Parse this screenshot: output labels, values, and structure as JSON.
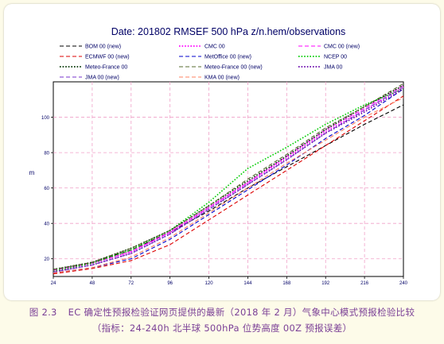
{
  "caption": {
    "figure_label": "图 2.3",
    "line1": "EC 确定性预报检验证网页提供的最新（2018 年 2 月）气象中心模式预报检验比较",
    "line2": "（指标：24-240h 北半球 500hPa 位势高度 00Z 预报误差）"
  },
  "chart_data": {
    "type": "line",
    "title": "Date: 201802 RMSEF 500 hPa z/n.hem/observations",
    "xlabel": "",
    "ylabel": "m",
    "x": [
      24,
      48,
      72,
      96,
      120,
      144,
      168,
      192,
      216,
      240
    ],
    "xlim": [
      24,
      240
    ],
    "ylim": [
      10,
      120
    ],
    "yticks": [
      20,
      40,
      60,
      80,
      100
    ],
    "grid": true,
    "legend_position": "top",
    "series": [
      {
        "name": "BOM 00 (new)",
        "color": "#000000",
        "dash": "dashed",
        "values": [
          13.5,
          18,
          25,
          35,
          47,
          60,
          72,
          84,
          96,
          107
        ]
      },
      {
        "name": "CMC 00",
        "color": "#ff00ff",
        "dash": "dotted",
        "values": [
          13,
          17.5,
          24,
          35,
          49,
          63,
          77,
          92,
          104,
          117
        ]
      },
      {
        "name": "CMC 00 (new)",
        "color": "#ff00ff",
        "dash": "dashed",
        "values": [
          13.5,
          17.5,
          24,
          35,
          49,
          63,
          78,
          93,
          105,
          118
        ]
      },
      {
        "name": "ECMWF 00 (new)",
        "color": "#dd0000",
        "dash": "dashed",
        "values": [
          11.5,
          14.5,
          19,
          28,
          42,
          56,
          70,
          84,
          98,
          112
        ]
      },
      {
        "name": "MetOffice 00 (new)",
        "color": "#0000cc",
        "dash": "dashed",
        "values": [
          12,
          15,
          20,
          31,
          45,
          59,
          73,
          88,
          101,
          116
        ]
      },
      {
        "name": "NCEP 00",
        "color": "#00cc00",
        "dash": "dotted",
        "values": [
          13,
          17.5,
          25,
          36,
          52,
          71,
          83,
          96,
          107,
          116
        ]
      },
      {
        "name": "Meteo-France 00",
        "color": "#003300",
        "dash": "dotted",
        "values": [
          14,
          18,
          26,
          36,
          50,
          64,
          78,
          93,
          106,
          118
        ]
      },
      {
        "name": "Meteo-France 00 (new)",
        "color": "#556b2f",
        "dash": "dashed",
        "values": [
          14,
          18,
          26,
          36,
          50,
          65,
          79,
          94,
          106,
          119
        ]
      },
      {
        "name": "JMA 00",
        "color": "#6600aa",
        "dash": "dotted",
        "values": [
          12.5,
          16.5,
          23,
          34,
          48,
          62,
          76,
          91,
          103,
          116
        ]
      },
      {
        "name": "JMA 00 (new)",
        "color": "#7733cc",
        "dash": "dashed",
        "values": [
          12.5,
          16.5,
          23,
          34,
          48,
          62,
          76,
          91,
          104,
          117
        ]
      },
      {
        "name": "KMA 00 (new)",
        "color": "#ff8060",
        "dash": "dashed",
        "values": [
          12,
          15,
          21,
          32,
          46,
          60,
          74,
          87,
          100,
          111
        ]
      }
    ]
  }
}
